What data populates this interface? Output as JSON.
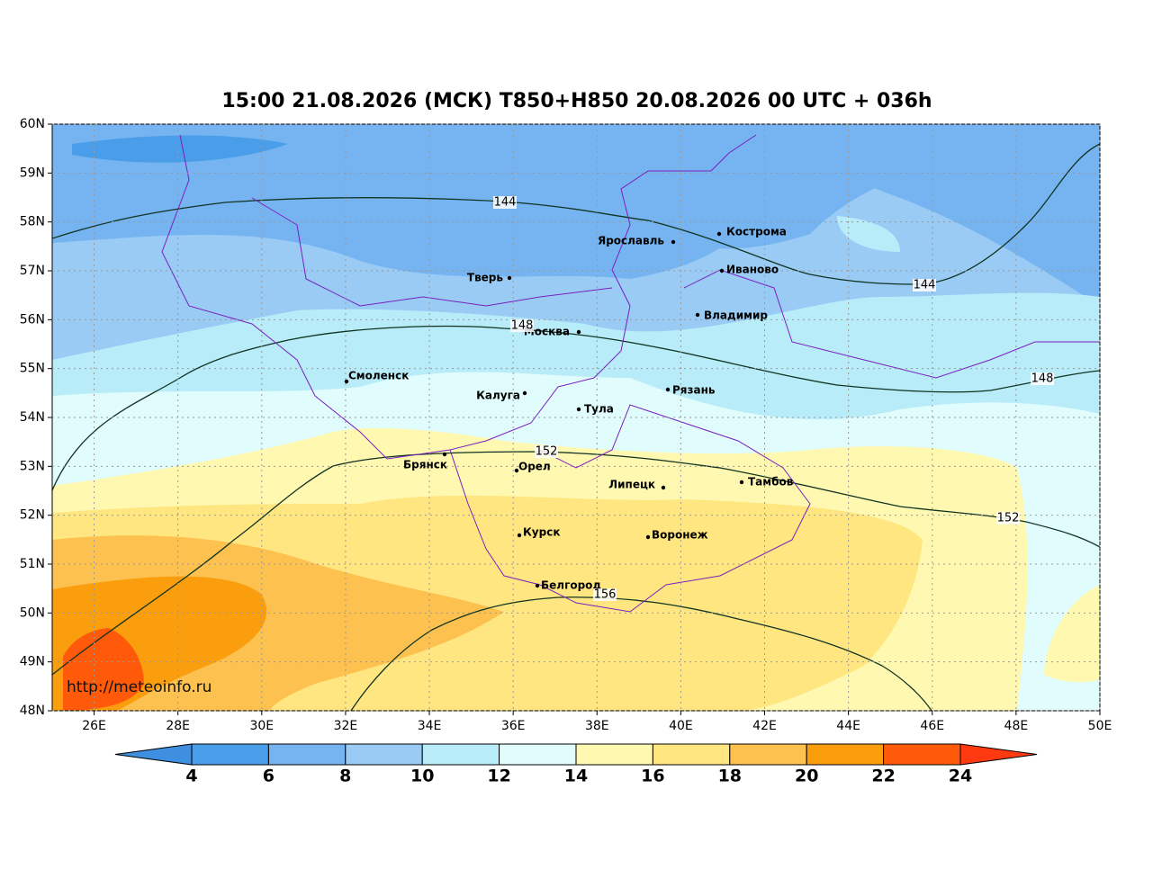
{
  "title": "15:00 21.08.2026 (МСК) T850+H850 20.08.2026 00 UTC + 036h",
  "map": {
    "xlim": [
      25,
      50
    ],
    "ylim": [
      48,
      60
    ],
    "xticks": [
      {
        "value": 26,
        "label": "26E"
      },
      {
        "value": 28,
        "label": "28E"
      },
      {
        "value": 30,
        "label": "30E"
      },
      {
        "value": 32,
        "label": "32E"
      },
      {
        "value": 34,
        "label": "34E"
      },
      {
        "value": 36,
        "label": "36E"
      },
      {
        "value": 38,
        "label": "38E"
      },
      {
        "value": 40,
        "label": "40E"
      },
      {
        "value": 42,
        "label": "42E"
      },
      {
        "value": 44,
        "label": "44E"
      },
      {
        "value": 46,
        "label": "46E"
      },
      {
        "value": 48,
        "label": "48E"
      },
      {
        "value": 50,
        "label": "50E"
      }
    ],
    "yticks": [
      {
        "value": 48,
        "label": "48N"
      },
      {
        "value": 49,
        "label": "49N"
      },
      {
        "value": 50,
        "label": "50N"
      },
      {
        "value": 51,
        "label": "51N"
      },
      {
        "value": 52,
        "label": "52N"
      },
      {
        "value": 53,
        "label": "53N"
      },
      {
        "value": 54,
        "label": "54N"
      },
      {
        "value": 55,
        "label": "55N"
      },
      {
        "value": 56,
        "label": "56N"
      },
      {
        "value": 57,
        "label": "57N"
      },
      {
        "value": 58,
        "label": "58N"
      },
      {
        "value": 59,
        "label": "59N"
      },
      {
        "value": 60,
        "label": "60N"
      }
    ],
    "grid": true
  },
  "cities": [
    "Кострома",
    "Ярославль",
    "Иваново",
    "Тверь",
    "Владимир",
    "Москва",
    "Смоленск",
    "Рязань",
    "Калуга",
    "Тула",
    "Брянск",
    "Орел",
    "Липецк",
    "Тамбов",
    "Курск",
    "Воронеж",
    "Белгород"
  ],
  "contour_labels": [
    "144",
    "144",
    "148",
    "148",
    "152",
    "152",
    "156"
  ],
  "colorbar": {
    "ticks": [
      4,
      6,
      8,
      10,
      12,
      14,
      16,
      18,
      20,
      22,
      24
    ],
    "colors": [
      "#3e8fe0",
      "#4a9de8",
      "#75b4f0",
      "#99cbf5",
      "#b8ecf8",
      "#e0fcfc",
      "#fff8b0",
      "#ffe680",
      "#fcc14e",
      "#fa9e0e",
      "#ff5a0a",
      "#ff3a10"
    ]
  },
  "watermark": "http://meteoinfo.ru"
}
